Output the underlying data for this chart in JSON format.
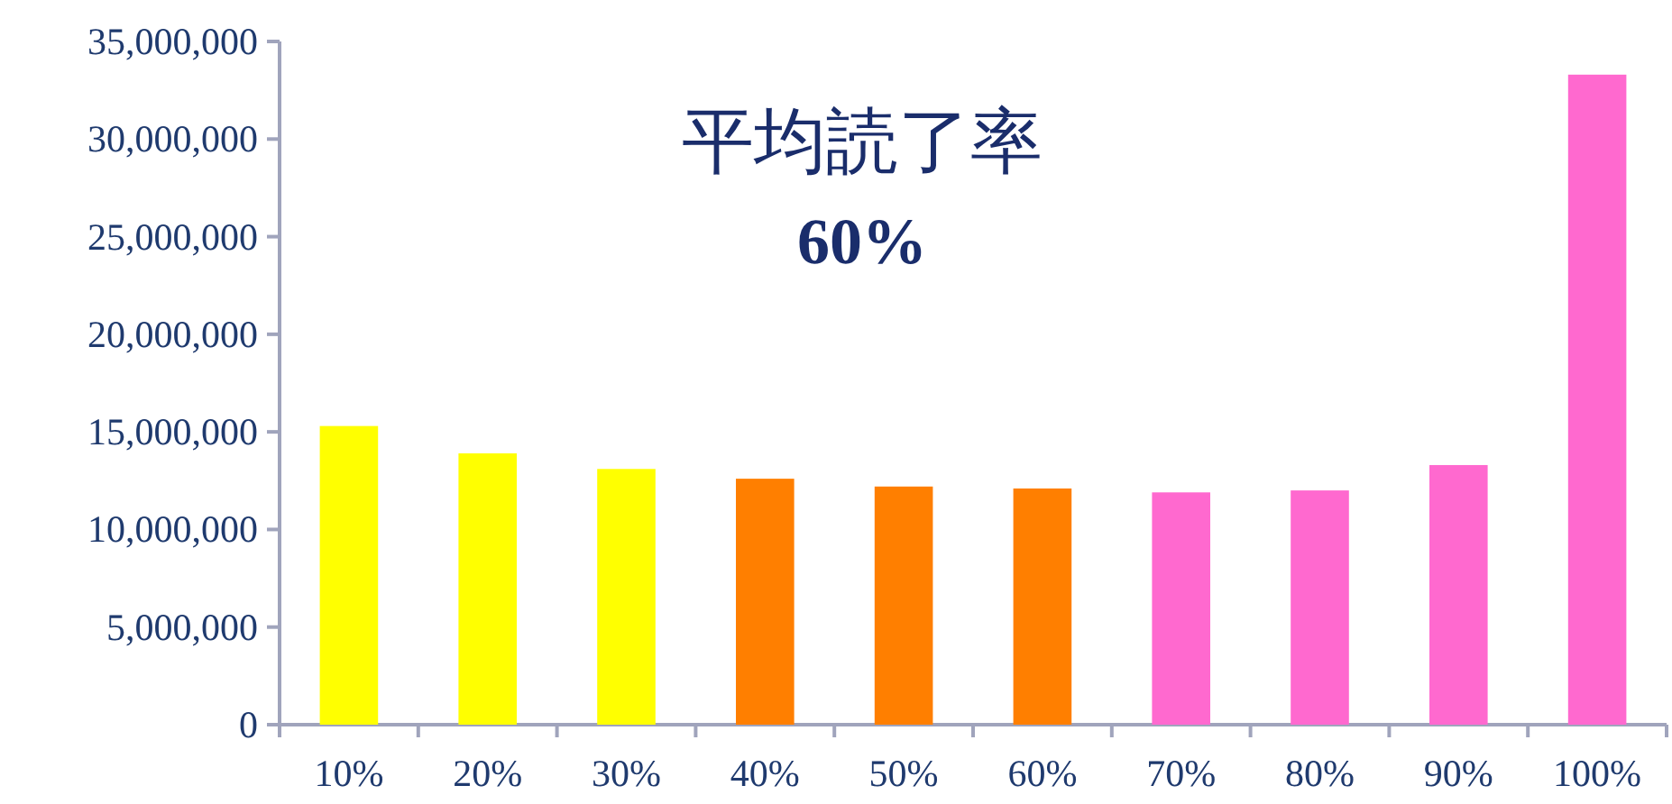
{
  "chart_data": {
    "type": "bar",
    "title": "平均読了率",
    "subtitle": "60%",
    "categories": [
      "10%",
      "20%",
      "30%",
      "40%",
      "50%",
      "60%",
      "70%",
      "80%",
      "90%",
      "100%"
    ],
    "values": [
      15300000,
      13900000,
      13100000,
      12600000,
      12200000,
      12100000,
      11900000,
      12000000,
      13300000,
      33300000
    ],
    "colors": [
      "#ffff00",
      "#ffff00",
      "#ffff00",
      "#ff7f00",
      "#ff7f00",
      "#ff7f00",
      "#ff69cf",
      "#ff69cf",
      "#ff69cf",
      "#ff69cf"
    ],
    "ylim": [
      0,
      35000000
    ],
    "yticks": [
      {
        "value": 0,
        "label": "0"
      },
      {
        "value": 5000000,
        "label": "5,000,000"
      },
      {
        "value": 10000000,
        "label": "10,000,000"
      },
      {
        "value": 15000000,
        "label": "15,000,000"
      },
      {
        "value": 20000000,
        "label": "20,000,000"
      },
      {
        "value": 25000000,
        "label": "25,000,000"
      },
      {
        "value": 30000000,
        "label": "30,000,000"
      },
      {
        "value": 35000000,
        "label": "35,000,000"
      }
    ],
    "grid": false
  }
}
